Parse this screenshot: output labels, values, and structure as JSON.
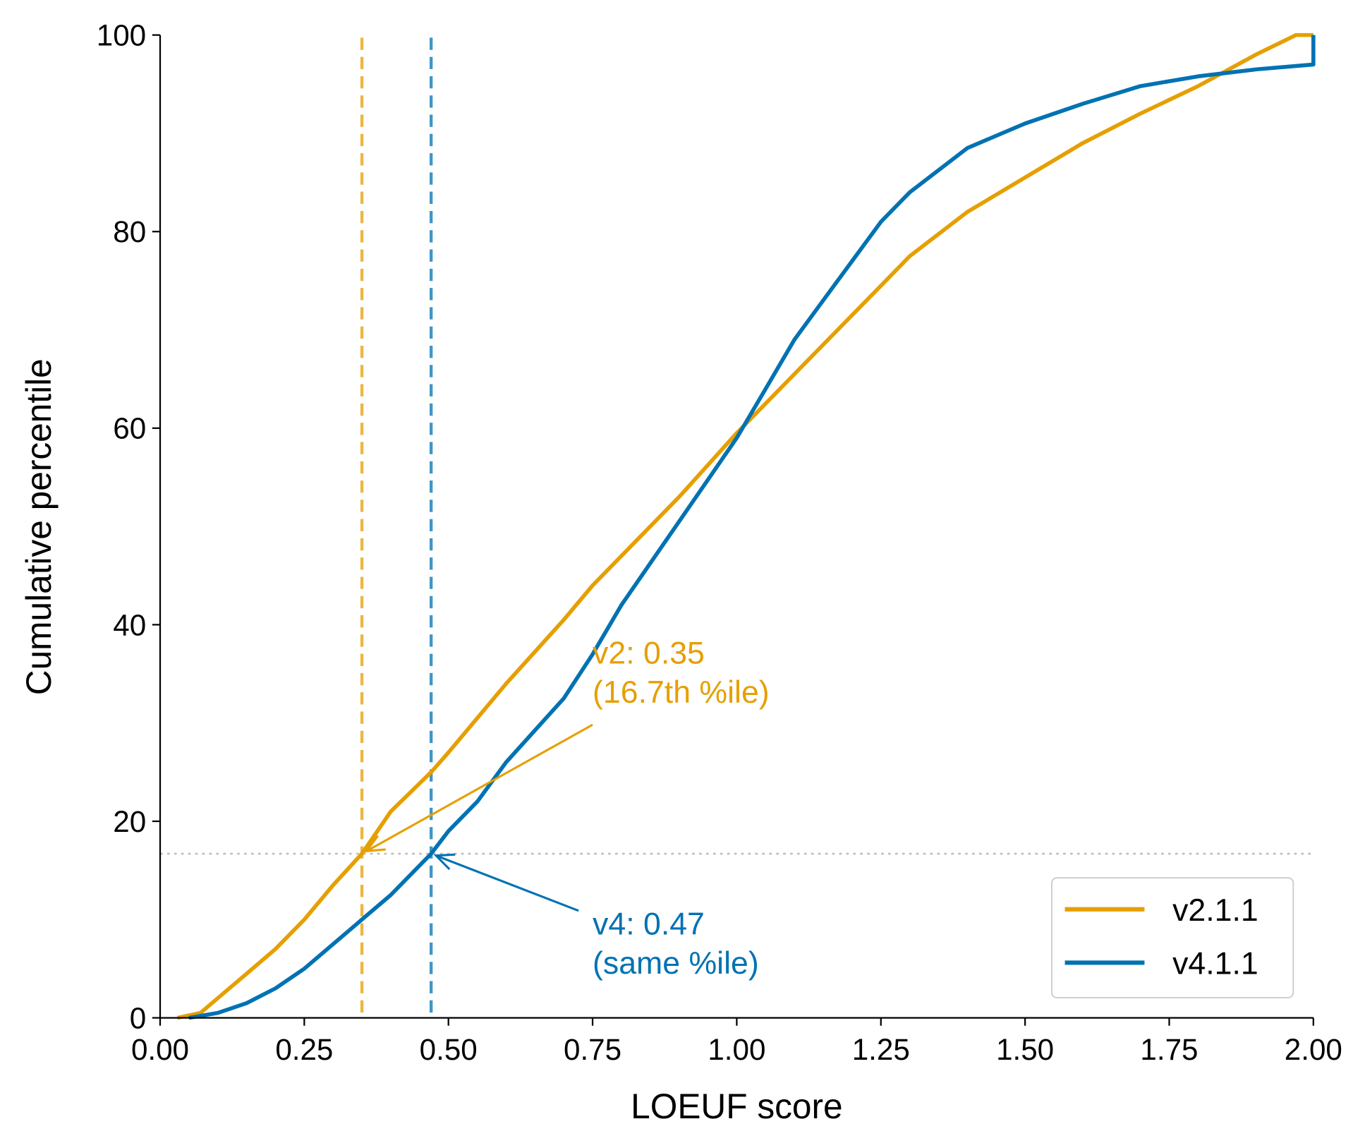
{
  "chart_data": {
    "type": "line",
    "title": "",
    "xlabel": "LOEUF score",
    "ylabel": "Cumulative percentile",
    "xlim": [
      0,
      2
    ],
    "ylim": [
      0,
      100
    ],
    "xticks": [
      "0.00",
      "0.25",
      "0.50",
      "0.75",
      "1.00",
      "1.25",
      "1.50",
      "1.75",
      "2.00"
    ],
    "yticks": [
      "0",
      "20",
      "40",
      "60",
      "80",
      "100"
    ],
    "grid": false,
    "legend_position": "bottom-right",
    "series": [
      {
        "name": "v2.1.1",
        "color": "#E69F00",
        "x": [
          0.03,
          0.07,
          0.1,
          0.15,
          0.2,
          0.25,
          0.3,
          0.35,
          0.4,
          0.47,
          0.5,
          0.6,
          0.7,
          0.75,
          0.8,
          0.9,
          1.0,
          1.05,
          1.1,
          1.2,
          1.25,
          1.3,
          1.4,
          1.5,
          1.6,
          1.7,
          1.8,
          1.9,
          1.97,
          2.0
        ],
        "y": [
          0,
          0.5,
          2,
          4.5,
          7,
          10,
          13.5,
          16.7,
          21,
          25,
          27,
          34,
          40.5,
          44,
          47,
          53,
          59.5,
          62.5,
          65.5,
          71.5,
          74.5,
          77.5,
          82,
          85.5,
          89,
          92,
          94.8,
          98,
          100,
          100
        ]
      },
      {
        "name": "v4.1.1",
        "color": "#0072B2",
        "x": [
          0.05,
          0.1,
          0.15,
          0.2,
          0.25,
          0.3,
          0.35,
          0.4,
          0.47,
          0.5,
          0.55,
          0.6,
          0.7,
          0.75,
          0.8,
          0.9,
          1.0,
          1.05,
          1.1,
          1.15,
          1.2,
          1.25,
          1.3,
          1.4,
          1.5,
          1.6,
          1.7,
          1.8,
          1.9,
          2.0,
          2.0
        ],
        "y": [
          0,
          0.5,
          1.5,
          3,
          5,
          7.5,
          10,
          12.5,
          16.7,
          19,
          22,
          26,
          32.5,
          37,
          42,
          50.5,
          59,
          64,
          69,
          73,
          77,
          81,
          84,
          88.5,
          91,
          93,
          94.8,
          95.8,
          96.5,
          97,
          100
        ]
      }
    ],
    "reference_lines": [
      {
        "orientation": "vertical",
        "x": 0.35,
        "color": "#E69F00",
        "style": "dashed"
      },
      {
        "orientation": "vertical",
        "x": 0.47,
        "color": "#0072B2",
        "style": "dashed"
      },
      {
        "orientation": "horizontal",
        "y": 16.7,
        "color": "#bbbbbb",
        "style": "dotted"
      }
    ],
    "annotations": [
      {
        "line1": "v2: 0.35",
        "line2": "(16.7th %ile)",
        "color": "#E69F00",
        "point": [
          0.35,
          16.7
        ],
        "text_at": [
          0.75,
          30
        ]
      },
      {
        "line1": "v4: 0.47",
        "line2": "(same %ile)",
        "color": "#0072B2",
        "point": [
          0.47,
          16.7
        ],
        "text_at": [
          0.75,
          6
        ]
      }
    ]
  }
}
